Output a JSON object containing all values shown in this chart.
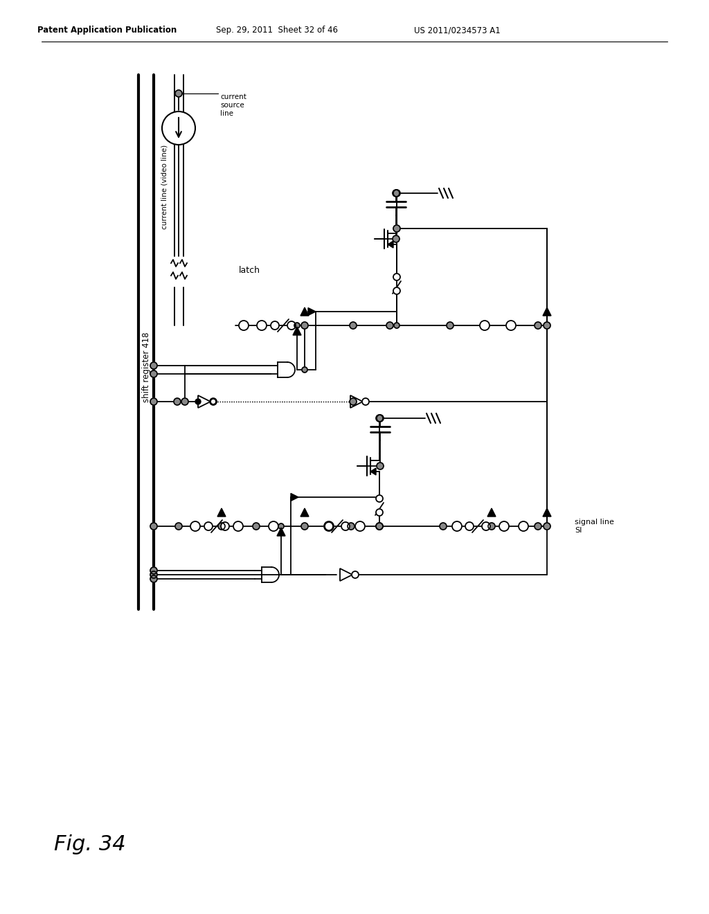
{
  "header_left": "Patent Application Publication",
  "header_mid": "Sep. 29, 2011  Sheet 32 of 46",
  "header_right": "US 2011/0234573 A1",
  "fig_label": "Fig. 34",
  "bg_color": "#ffffff"
}
